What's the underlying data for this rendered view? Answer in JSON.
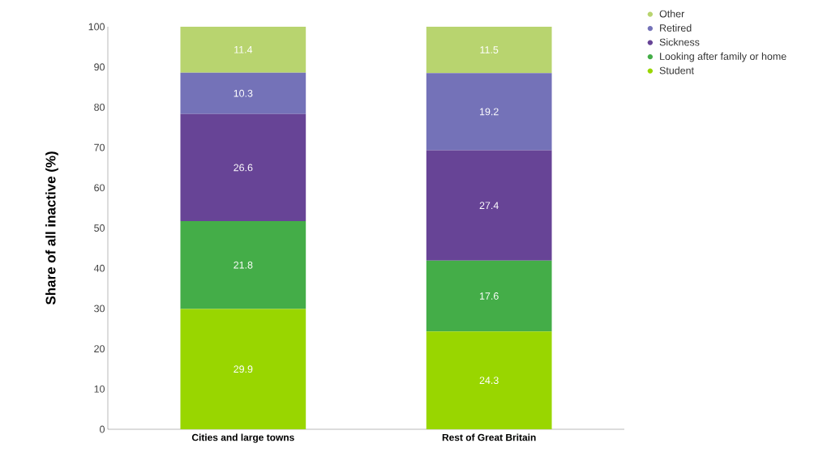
{
  "chart_data": {
    "type": "bar",
    "stacked": true,
    "ylabel": "Share of all inactive (%)",
    "categories": [
      "Cities and large towns",
      "Rest of Great Britain"
    ],
    "series": [
      {
        "name": "Student",
        "color": "#99d600",
        "values": [
          29.9,
          24.3
        ]
      },
      {
        "name": "Looking after family or home",
        "color": "#44ad48",
        "values": [
          21.8,
          17.6
        ]
      },
      {
        "name": "Sickness",
        "color": "#674496",
        "values": [
          26.6,
          27.4
        ]
      },
      {
        "name": "Retired",
        "color": "#7472b8",
        "values": [
          10.3,
          19.2
        ]
      },
      {
        "name": "Other",
        "color": "#b8d46f",
        "values": [
          11.4,
          11.5
        ]
      }
    ],
    "ylim": [
      0,
      100
    ],
    "yticks": [
      0,
      10,
      20,
      30,
      40,
      50,
      60,
      70,
      80,
      90,
      100
    ],
    "data_labels": true,
    "grid": false,
    "legend": "top right"
  }
}
